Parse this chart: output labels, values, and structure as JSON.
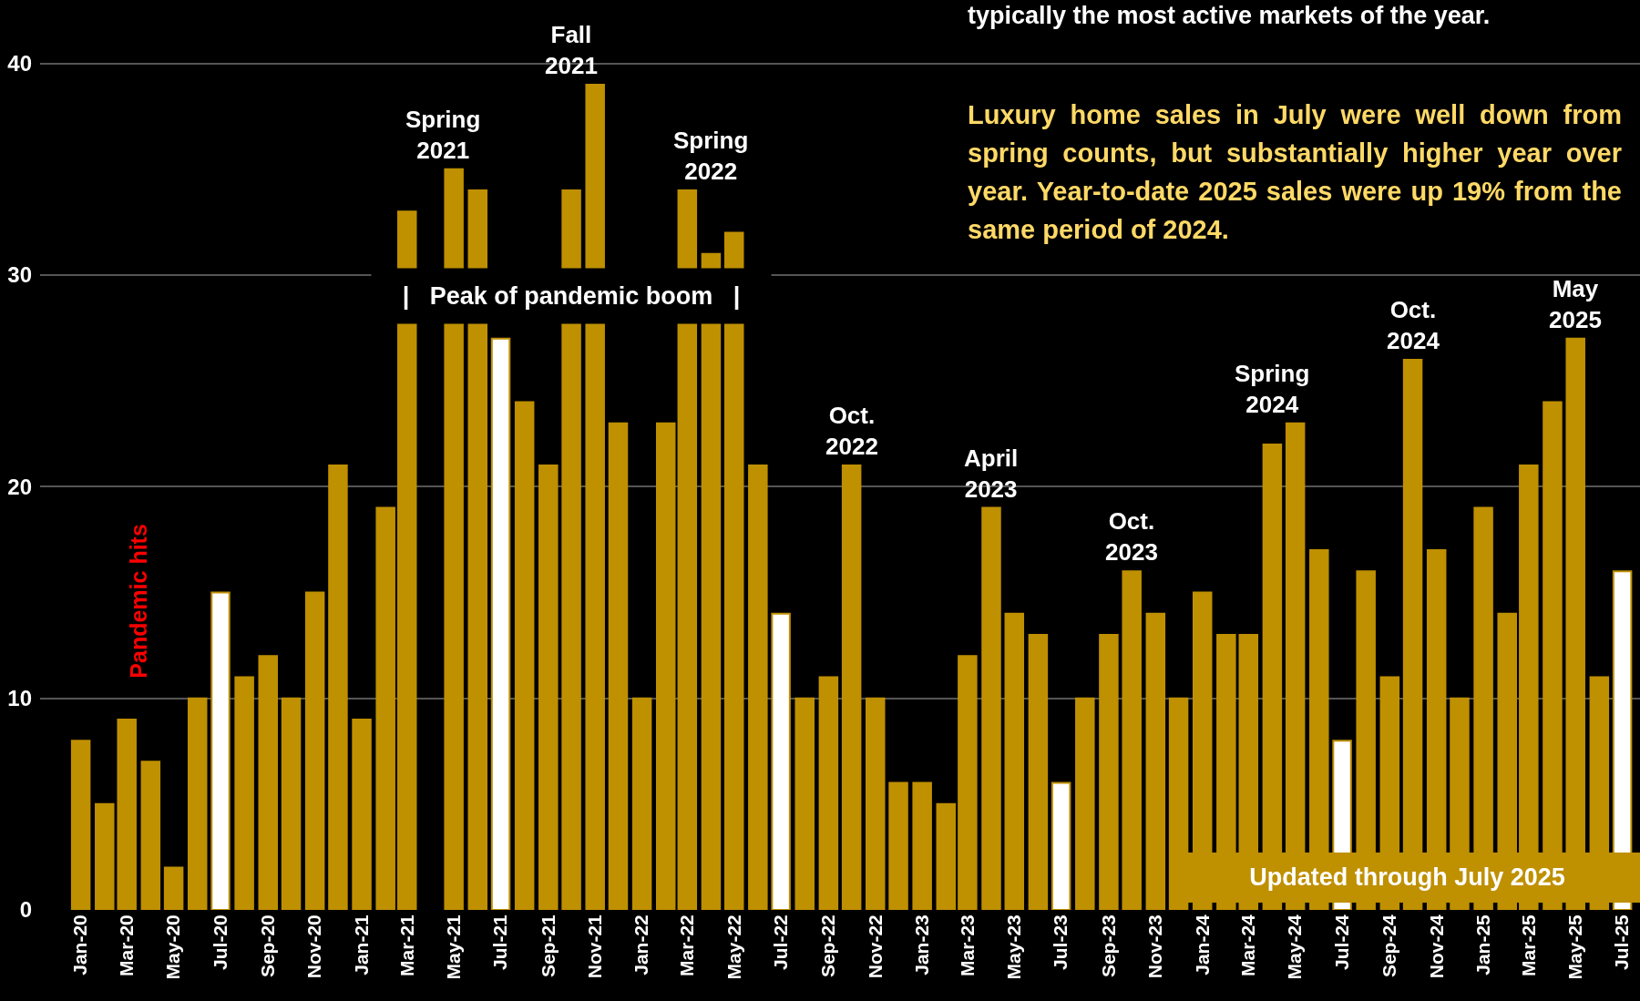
{
  "chart_data": {
    "type": "bar",
    "color": "#bf9000",
    "x": [
      "2020-01",
      "2020-02",
      "2020-03",
      "2020-04",
      "2020-05",
      "2020-06",
      "2020-07",
      "2020-08",
      "2020-09",
      "2020-10",
      "2020-11",
      "2020-12",
      "2021-01",
      "2021-02",
      "2021-03",
      "2021-04",
      "2021-05",
      "2021-06",
      "2021-07",
      "2021-08",
      "2021-09",
      "2021-10",
      "2021-11",
      "2021-12",
      "2022-01",
      "2022-02",
      "2022-03",
      "2022-04",
      "2022-05",
      "2022-06",
      "2022-07",
      "2022-08",
      "2022-09",
      "2022-10",
      "2022-11",
      "2022-12",
      "2023-01",
      "2023-02",
      "2023-03",
      "2023-04",
      "2023-05",
      "2023-06",
      "2023-07",
      "2023-08",
      "2023-09",
      "2023-10",
      "2023-11",
      "2023-12",
      "2024-01",
      "2024-02",
      "2024-03",
      "2024-04",
      "2024-05",
      "2024-06",
      "2024-07",
      "2024-08",
      "2024-09",
      "2024-10",
      "2024-11",
      "2024-12",
      "2025-01",
      "2025-02",
      "2025-03",
      "2025-04",
      "2025-05",
      "2025-06",
      "2025-07"
    ],
    "values": [
      8,
      5,
      9,
      7,
      2,
      10,
      15,
      11,
      12,
      10,
      15,
      21,
      9,
      19,
      33,
      null,
      35,
      34,
      27,
      24,
      21,
      34,
      39,
      23,
      10,
      23,
      34,
      31,
      32,
      21,
      14,
      10,
      11,
      21,
      10,
      6,
      6,
      5,
      12,
      19,
      14,
      13,
      6,
      10,
      13,
      16,
      14,
      10,
      15,
      13,
      13,
      22,
      23,
      17,
      8,
      16,
      11,
      26,
      17,
      10,
      19,
      14,
      21,
      24,
      27,
      11,
      16
    ],
    "colors": [
      "#bf9000",
      "#bf9000",
      "#bf9000",
      "#bf9000",
      "#bf9000",
      "#bf9000",
      "#ffffff",
      "#bf9000",
      "#bf9000",
      "#bf9000",
      "#bf9000",
      "#bf9000",
      "#bf9000",
      "#bf9000",
      "#bf9000",
      "#bf9000",
      "#bf9000",
      "#bf9000",
      "#ffffff",
      "#bf9000",
      "#bf9000",
      "#bf9000",
      "#bf9000",
      "#bf9000",
      "#bf9000",
      "#bf9000",
      "#bf9000",
      "#bf9000",
      "#bf9000",
      "#bf9000",
      "#ffffff",
      "#bf9000",
      "#bf9000",
      "#bf9000",
      "#bf9000",
      "#bf9000",
      "#bf9000",
      "#bf9000",
      "#bf9000",
      "#bf9000",
      "#bf9000",
      "#bf9000",
      "#ffffff",
      "#bf9000",
      "#bf9000",
      "#bf9000",
      "#bf9000",
      "#bf9000",
      "#bf9000",
      "#bf9000",
      "#bf9000",
      "#bf9000",
      "#bf9000",
      "#bf9000",
      "#ffffff",
      "#bf9000",
      "#bf9000",
      "#bf9000",
      "#bf9000",
      "#bf9000",
      "#bf9000",
      "#bf9000",
      "#bf9000",
      "#bf9000",
      "#bf9000",
      "#bf9000",
      "#ffffff"
    ],
    "xlim": [
      "2019-11-09",
      "2025-07-24"
    ],
    "xticks": [
      {
        "value": "2020-01",
        "label": "Jan-20"
      },
      {
        "value": "2020-03",
        "label": "Mar-20"
      },
      {
        "value": "2020-05",
        "label": "May-20"
      },
      {
        "value": "2020-07",
        "label": "Jul-20"
      },
      {
        "value": "2020-09",
        "label": "Sep-20"
      },
      {
        "value": "2020-11",
        "label": "Nov-20"
      },
      {
        "value": "2021-01",
        "label": "Jan-21"
      },
      {
        "value": "2021-03",
        "label": "Mar-21"
      },
      {
        "value": "2021-05",
        "label": "May-21"
      },
      {
        "value": "2021-07",
        "label": "Jul-21"
      },
      {
        "value": "2021-09",
        "label": "Sep-21"
      },
      {
        "value": "2021-11",
        "label": "Nov-21"
      },
      {
        "value": "2022-01",
        "label": "Jan-22"
      },
      {
        "value": "2022-03",
        "label": "Mar-22"
      },
      {
        "value": "2022-05",
        "label": "May-22"
      },
      {
        "value": "2022-07",
        "label": "Jul-22"
      },
      {
        "value": "2022-09",
        "label": "Sep-22"
      },
      {
        "value": "2022-11",
        "label": "Nov-22"
      },
      {
        "value": "2023-01",
        "label": "Jan-23"
      },
      {
        "value": "2023-03",
        "label": "Mar-23"
      },
      {
        "value": "2023-05",
        "label": "May-23"
      },
      {
        "value": "2023-07",
        "label": "Jul-23"
      },
      {
        "value": "2023-09",
        "label": "Sep-23"
      },
      {
        "value": "2023-11",
        "label": "Nov-23"
      },
      {
        "value": "2024-01",
        "label": "Jan-24"
      },
      {
        "value": "2024-03",
        "label": "Mar-24"
      },
      {
        "value": "2024-05",
        "label": "May-24"
      },
      {
        "value": "2024-07",
        "label": "Jul-24"
      },
      {
        "value": "2024-09",
        "label": "Sep-24"
      },
      {
        "value": "2024-11",
        "label": "Nov-24"
      },
      {
        "value": "2025-01",
        "label": "Jan-25"
      },
      {
        "value": "2025-03",
        "label": "Mar-25"
      },
      {
        "value": "2025-05",
        "label": "May-25"
      },
      {
        "value": "2025-07",
        "label": "Jul-25"
      }
    ],
    "ylim": [
      0,
      43
    ],
    "yticks": [
      0,
      10,
      20,
      30,
      40
    ],
    "grid": "y",
    "annotations": [
      "typically the most active markets of the year.",
      "Luxury home sales in July were well down from spring counts, but substantially higher year over year. Year-to-date 2025 sales were up 19% from the same period of 2024.",
      "Updated through July 2025",
      "Pandemic hits",
      "|   Peak of pandemic boom   |",
      "Spring\n2021",
      "Fall\n2021",
      "Spring\n2022",
      "Oct.\n2022",
      "April\n2023",
      "Oct.\n2023",
      "Spring\n2024",
      "Oct.\n2024",
      "May\n2025"
    ]
  }
}
